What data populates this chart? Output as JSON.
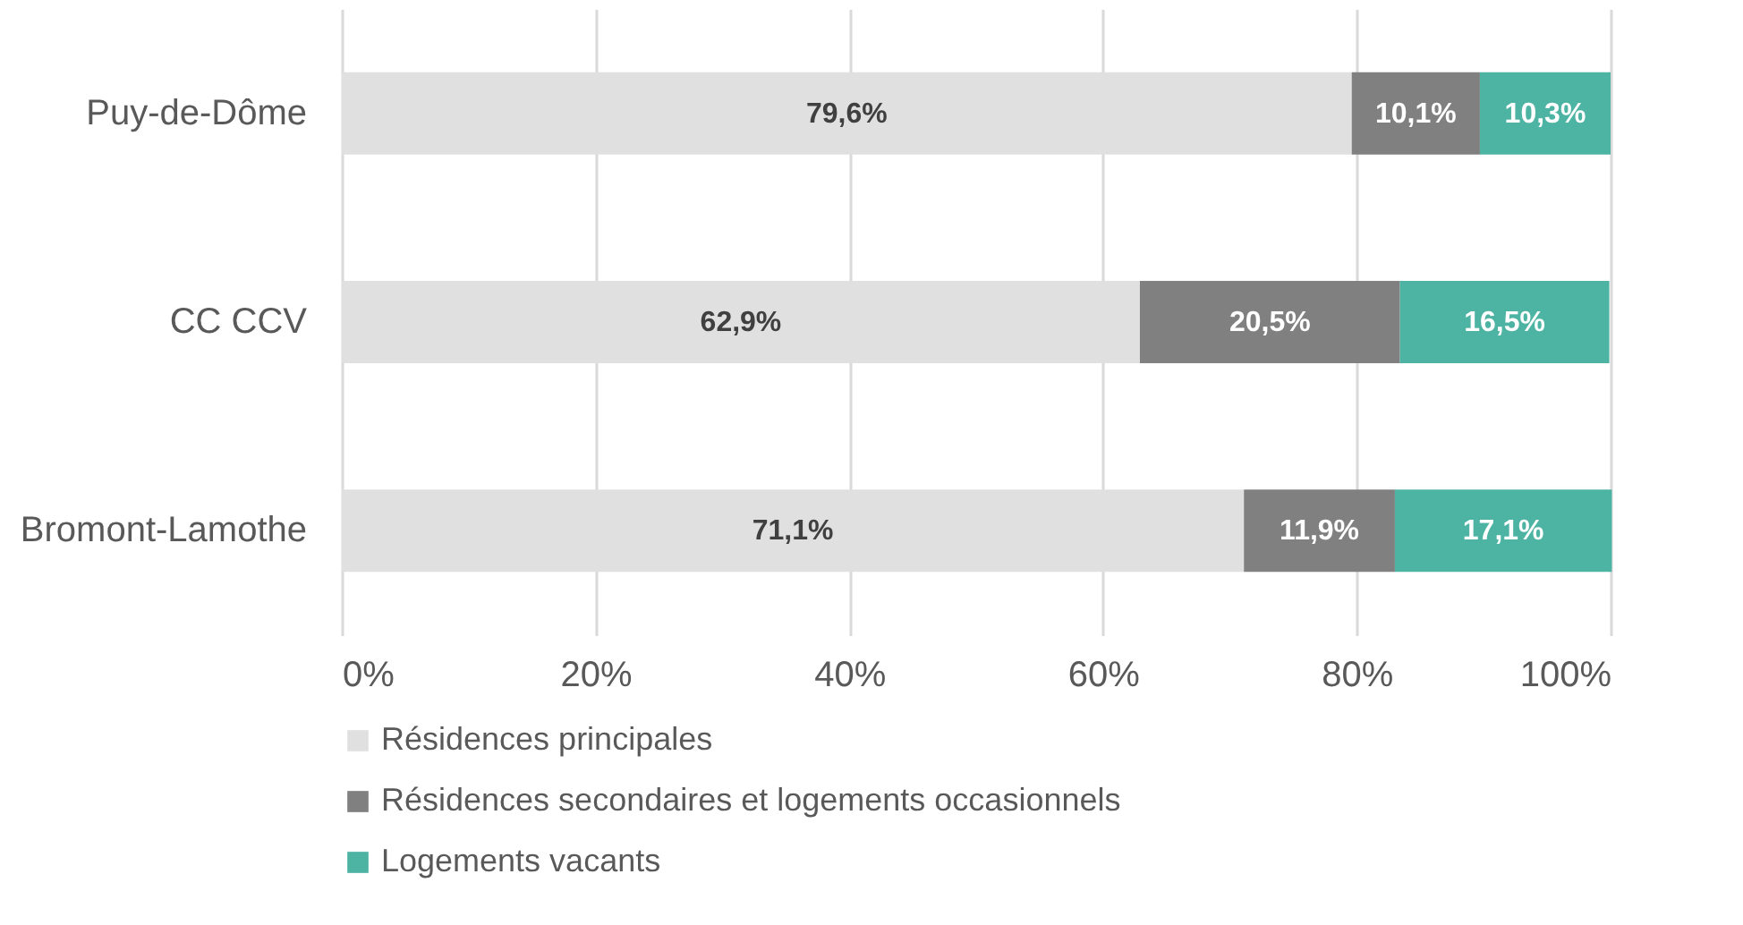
{
  "chart_data": {
    "type": "bar",
    "orientation": "horizontal",
    "stacked": true,
    "categories": [
      "Puy-de-Dôme",
      "CC CCV",
      "Bromont-Lamothe"
    ],
    "series": [
      {
        "name": "Résidences principales",
        "color": "#e0e0e0",
        "values": [
          79.6,
          62.9,
          71.1
        ],
        "value_labels": [
          "79,6%",
          "62,9%",
          "71,1%"
        ]
      },
      {
        "name": "Résidences secondaires et logements occasionnels",
        "color": "#808080",
        "values": [
          10.1,
          20.5,
          11.9
        ],
        "value_labels": [
          "10,1%",
          "20,5%",
          "11,9%"
        ]
      },
      {
        "name": "Logements vacants",
        "color": "#4db3a2",
        "values": [
          10.3,
          16.5,
          17.1
        ],
        "value_labels": [
          "10,3%",
          "16,5%",
          "17,1%"
        ]
      }
    ],
    "xlim": [
      0,
      100
    ],
    "xticks": [
      {
        "value": 0,
        "label": "0%"
      },
      {
        "value": 20,
        "label": "20%"
      },
      {
        "value": 40,
        "label": "40%"
      },
      {
        "value": 60,
        "label": "60%"
      },
      {
        "value": 80,
        "label": "80%"
      },
      {
        "value": 100,
        "label": "100%"
      }
    ],
    "grid": "x",
    "legend": "bottom"
  }
}
